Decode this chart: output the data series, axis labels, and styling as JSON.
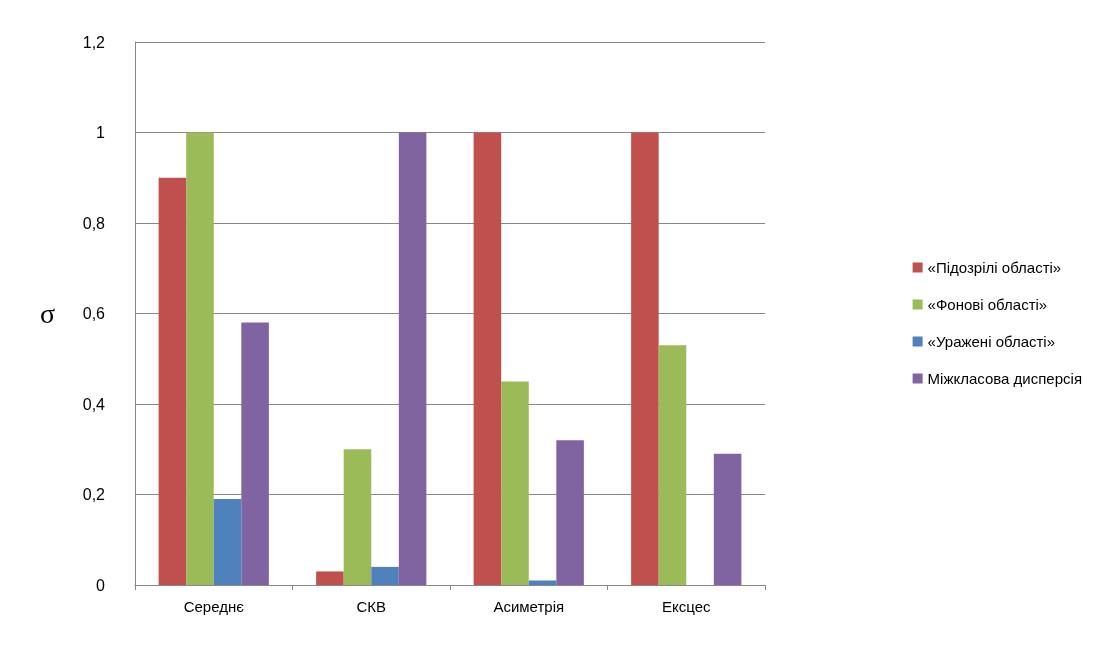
{
  "chart_data": {
    "type": "bar",
    "ylabel": "σ",
    "categories": [
      "Середнє",
      "СКВ",
      "Асиметрія",
      "Ексцес"
    ],
    "series": [
      {
        "name": "«Підозрілі області»",
        "color": "#c0504d",
        "values": [
          0.9,
          0.03,
          1.0,
          1.0
        ]
      },
      {
        "name": "«Фонові області»",
        "color": "#9bbb59",
        "values": [
          1.0,
          0.3,
          0.45,
          0.53
        ]
      },
      {
        "name": "«Уражені області»",
        "color": "#4f81bd",
        "values": [
          0.19,
          0.04,
          0.01,
          null
        ]
      },
      {
        "name": "Міжкласова дисперсія",
        "color": "#8064a2",
        "values": [
          0.58,
          1.0,
          0.32,
          0.29
        ]
      }
    ],
    "ylim": [
      0,
      1.2
    ],
    "yticks": [
      0,
      {
        "value": 0.2,
        "label": "0,2"
      },
      {
        "value": 0.4,
        "label": "0,4"
      },
      {
        "value": 0.6,
        "label": "0,6"
      },
      {
        "value": 0.8,
        "label": "0,8"
      },
      1,
      {
        "value": 1.2,
        "label": "1,2"
      }
    ],
    "grid": "y",
    "legend": "right"
  }
}
